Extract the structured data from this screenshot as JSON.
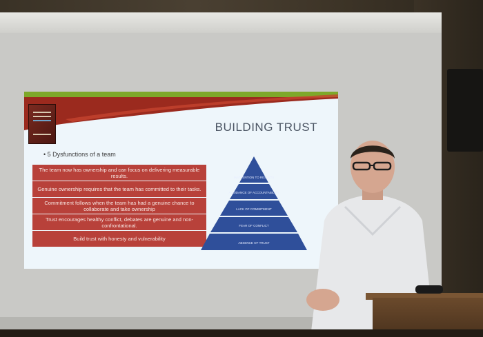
{
  "slide": {
    "title": "BUILDING TRUST",
    "bullet": "• 5 Dysfunctions of a team",
    "rows": [
      "The team now has ownership and can focus on delivering measurable results.",
      "Genuine ownership requires that the team has committed to their tasks.",
      "Commitment follows when the team has had a genuine chance to collaborate and take ownership",
      "Trust encourages healthy conflict, debates are genuine and non-confrontational.",
      "Build trust with honesty and vulnerability"
    ],
    "pyramid": [
      "INATTENTION TO RESULTS",
      "AVOIDANCE OF ACCOUNTABILITY",
      "LACK OF COMMITMENT",
      "FEAR OF CONFLICT",
      "ABSENCE OF TRUST"
    ],
    "colors": {
      "row": "#b8413a",
      "pyramid": "#2f4f9a",
      "banner_red": "#9b2a1e",
      "banner_green": "#7ea82a"
    }
  }
}
